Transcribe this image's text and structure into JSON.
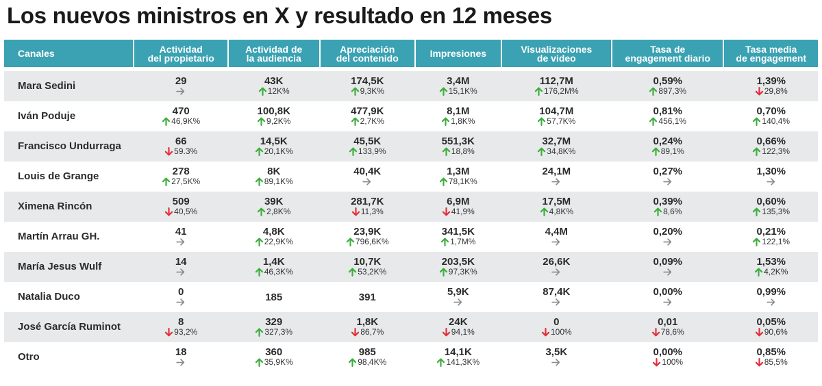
{
  "title": "Los nuevos ministros en X y resultado en 12 meses",
  "colors": {
    "header": "#3aa2b3",
    "up": "#3cae3c",
    "down": "#e0303a",
    "neutral": "#8a8a8a",
    "row_shade": "#e7e9ea"
  },
  "columns": [
    "Canales",
    "Actividad\ndel propietario",
    "Actividad de\nla audiencia",
    "Apreciación\ndel contenido",
    "Impresiones",
    "Visualizaciones\nde video",
    "Tasa de\nengagement diario",
    "Tasa media\nde engagement"
  ],
  "chart_data": {
    "type": "table",
    "title": "Los nuevos ministros en X y resultado en 12 meses",
    "rows": [
      {
        "name": "Mara Sedini",
        "cells": [
          {
            "v": "29",
            "c": "",
            "d": "flat"
          },
          {
            "v": "43K",
            "c": "12K%",
            "d": "up"
          },
          {
            "v": "174,5K",
            "c": "9,3K%",
            "d": "up"
          },
          {
            "v": "3,4M",
            "c": "15,1K%",
            "d": "up"
          },
          {
            "v": "112,7M",
            "c": "176,2M%",
            "d": "up"
          },
          {
            "v": "0,59%",
            "c": "897,3%",
            "d": "up"
          },
          {
            "v": "1,39%",
            "c": "29,8%",
            "d": "down"
          }
        ]
      },
      {
        "name": "Iván Poduje",
        "cells": [
          {
            "v": "470",
            "c": "46,9K%",
            "d": "up"
          },
          {
            "v": "100,8K",
            "c": "9,2K%",
            "d": "up"
          },
          {
            "v": "477,9K",
            "c": "2,7K%",
            "d": "up"
          },
          {
            "v": "8,1M",
            "c": "1,8K%",
            "d": "up"
          },
          {
            "v": "104,7M",
            "c": "57,7K%",
            "d": "up"
          },
          {
            "v": "0,81%",
            "c": "456,1%",
            "d": "up"
          },
          {
            "v": "0,70%",
            "c": "140,4%",
            "d": "up"
          }
        ]
      },
      {
        "name": "Francisco Undurraga",
        "cells": [
          {
            "v": "66",
            "c": "59.3%",
            "d": "down"
          },
          {
            "v": "14,5K",
            "c": "20,1K%",
            "d": "up"
          },
          {
            "v": "45,5K",
            "c": "133,9%",
            "d": "up"
          },
          {
            "v": "551,3K",
            "c": "18,8%",
            "d": "up"
          },
          {
            "v": "32,7M",
            "c": "34,8K%",
            "d": "up"
          },
          {
            "v": "0,24%",
            "c": "89,1%",
            "d": "up"
          },
          {
            "v": "0,66%",
            "c": "122,3%",
            "d": "up"
          }
        ]
      },
      {
        "name": "Louis de Grange",
        "cells": [
          {
            "v": "278",
            "c": "27,5K%",
            "d": "up"
          },
          {
            "v": "8K",
            "c": "89,1K%",
            "d": "up"
          },
          {
            "v": "40,4K",
            "c": "",
            "d": "flat"
          },
          {
            "v": "1,3M",
            "c": "78,1K%",
            "d": "up"
          },
          {
            "v": "24,1M",
            "c": "",
            "d": "flat"
          },
          {
            "v": "0,27%",
            "c": "",
            "d": "flat"
          },
          {
            "v": "1,30%",
            "c": "",
            "d": "flat"
          }
        ]
      },
      {
        "name": "Ximena Rincón",
        "cells": [
          {
            "v": "509",
            "c": "40,5%",
            "d": "down"
          },
          {
            "v": "39K",
            "c": "2,8K%",
            "d": "up"
          },
          {
            "v": "281,7K",
            "c": "11,3%",
            "d": "down"
          },
          {
            "v": "6,9M",
            "c": "41,9%",
            "d": "down"
          },
          {
            "v": "17,5M",
            "c": "4,8K%",
            "d": "up"
          },
          {
            "v": "0,39%",
            "c": "8,6%",
            "d": "up"
          },
          {
            "v": "0,60%",
            "c": "135,3%",
            "d": "up"
          }
        ]
      },
      {
        "name": "Martín Arrau GH.",
        "cells": [
          {
            "v": "41",
            "c": "",
            "d": "flat"
          },
          {
            "v": "4,8K",
            "c": "22,9K%",
            "d": "up"
          },
          {
            "v": "23,9K",
            "c": "796,6K%",
            "d": "up"
          },
          {
            "v": "341,5K",
            "c": "1,7M%",
            "d": "up"
          },
          {
            "v": "4,4M",
            "c": "",
            "d": "flat"
          },
          {
            "v": "0,20%",
            "c": "",
            "d": "flat"
          },
          {
            "v": "0,21%",
            "c": "122,1%",
            "d": "up"
          }
        ]
      },
      {
        "name": "María Jesus Wulf",
        "cells": [
          {
            "v": "14",
            "c": "",
            "d": "flat"
          },
          {
            "v": "1,4K",
            "c": "46,3K%",
            "d": "up"
          },
          {
            "v": "10,7K",
            "c": "53,2K%",
            "d": "up"
          },
          {
            "v": "203,5K",
            "c": "97,3K%",
            "d": "up"
          },
          {
            "v": "26,6K",
            "c": "",
            "d": "flat"
          },
          {
            "v": "0,09%",
            "c": "",
            "d": "flat"
          },
          {
            "v": "1,53%",
            "c": "4,2K%",
            "d": "up"
          }
        ]
      },
      {
        "name": "Natalia Duco",
        "cells": [
          {
            "v": "0",
            "c": "",
            "d": "flat"
          },
          {
            "v": "185",
            "c": "",
            "d": "none"
          },
          {
            "v": "391",
            "c": "",
            "d": "none"
          },
          {
            "v": "5,9K",
            "c": "",
            "d": "flat"
          },
          {
            "v": "87,4K",
            "c": "",
            "d": "flat"
          },
          {
            "v": "0,00%",
            "c": "",
            "d": "flat"
          },
          {
            "v": "0,99%",
            "c": "",
            "d": "flat"
          }
        ]
      },
      {
        "name": "José García Ruminot",
        "cells": [
          {
            "v": "8",
            "c": "93,2%",
            "d": "down"
          },
          {
            "v": "329",
            "c": "327,3%",
            "d": "up"
          },
          {
            "v": "1,8K",
            "c": "86,7%",
            "d": "down"
          },
          {
            "v": "24K",
            "c": "94,1%",
            "d": "down"
          },
          {
            "v": "0",
            "c": "100%",
            "d": "down"
          },
          {
            "v": "0,01",
            "c": "78,6%",
            "d": "down"
          },
          {
            "v": "0,05%",
            "c": "90,6%",
            "d": "down"
          }
        ]
      },
      {
        "name": "Otro",
        "cells": [
          {
            "v": "18",
            "c": "",
            "d": "flat"
          },
          {
            "v": "360",
            "c": "35,9K%",
            "d": "up"
          },
          {
            "v": "985",
            "c": "98,4K%",
            "d": "up"
          },
          {
            "v": "14,1K",
            "c": "141,3K%",
            "d": "up"
          },
          {
            "v": "3,5K",
            "c": "",
            "d": "flat"
          },
          {
            "v": "0,00%",
            "c": "100%",
            "d": "down"
          },
          {
            "v": "0,85%",
            "c": "85,5%",
            "d": "down"
          }
        ]
      }
    ]
  }
}
